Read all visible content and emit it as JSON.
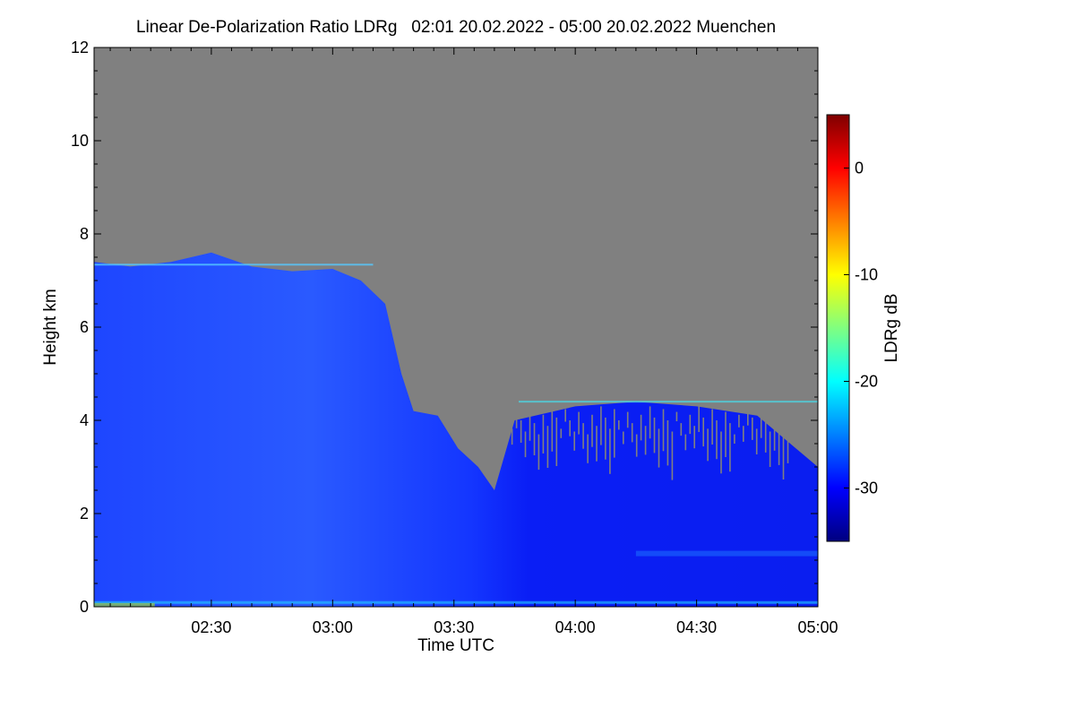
{
  "chart_data": {
    "type": "heatmap",
    "title": "Linear De-Polarization Ratio LDRg   02:01 20.02.2022 - 05:00 20.02.2022 Muenchen",
    "xlabel": "Time UTC",
    "ylabel": "Height km",
    "x_range_minutes_utc": [
      121,
      300
    ],
    "x_ticks": [
      {
        "minute": 150,
        "label": "02:30"
      },
      {
        "minute": 180,
        "label": "03:00"
      },
      {
        "minute": 210,
        "label": "03:30"
      },
      {
        "minute": 240,
        "label": "04:00"
      },
      {
        "minute": 270,
        "label": "04:30"
      },
      {
        "minute": 300,
        "label": "05:00"
      }
    ],
    "y_range_km": [
      0,
      12
    ],
    "y_ticks": [
      0,
      2,
      4,
      6,
      8,
      10,
      12
    ],
    "no_data_color": "#808080",
    "signal_top_km": [
      {
        "minute": 121,
        "km": 7.4
      },
      {
        "minute": 130,
        "km": 7.3
      },
      {
        "minute": 140,
        "km": 7.4
      },
      {
        "minute": 150,
        "km": 7.6
      },
      {
        "minute": 160,
        "km": 7.3
      },
      {
        "minute": 170,
        "km": 7.2
      },
      {
        "minute": 180,
        "km": 7.25
      },
      {
        "minute": 187,
        "km": 7.0
      },
      {
        "minute": 193,
        "km": 6.5
      },
      {
        "minute": 197,
        "km": 5.0
      },
      {
        "minute": 200,
        "km": 4.2
      },
      {
        "minute": 206,
        "km": 4.1
      },
      {
        "minute": 211,
        "km": 3.4
      },
      {
        "minute": 216,
        "km": 3.0
      },
      {
        "minute": 220,
        "km": 2.5
      },
      {
        "minute": 225,
        "km": 4.0
      },
      {
        "minute": 240,
        "km": 4.3
      },
      {
        "minute": 255,
        "km": 4.4
      },
      {
        "minute": 270,
        "km": 4.3
      },
      {
        "minute": 285,
        "km": 4.1
      },
      {
        "minute": 300,
        "km": 3.0
      }
    ],
    "colorbar": {
      "label": "LDRg dB",
      "range_db": [
        -35,
        5
      ],
      "ticks": [
        0,
        -10,
        -20,
        -30
      ],
      "colors": [
        "#00007f",
        "#0000ff",
        "#0080ff",
        "#00ffff",
        "#80ff80",
        "#ffff00",
        "#ff8000",
        "#ff0000",
        "#7f0000"
      ]
    }
  }
}
